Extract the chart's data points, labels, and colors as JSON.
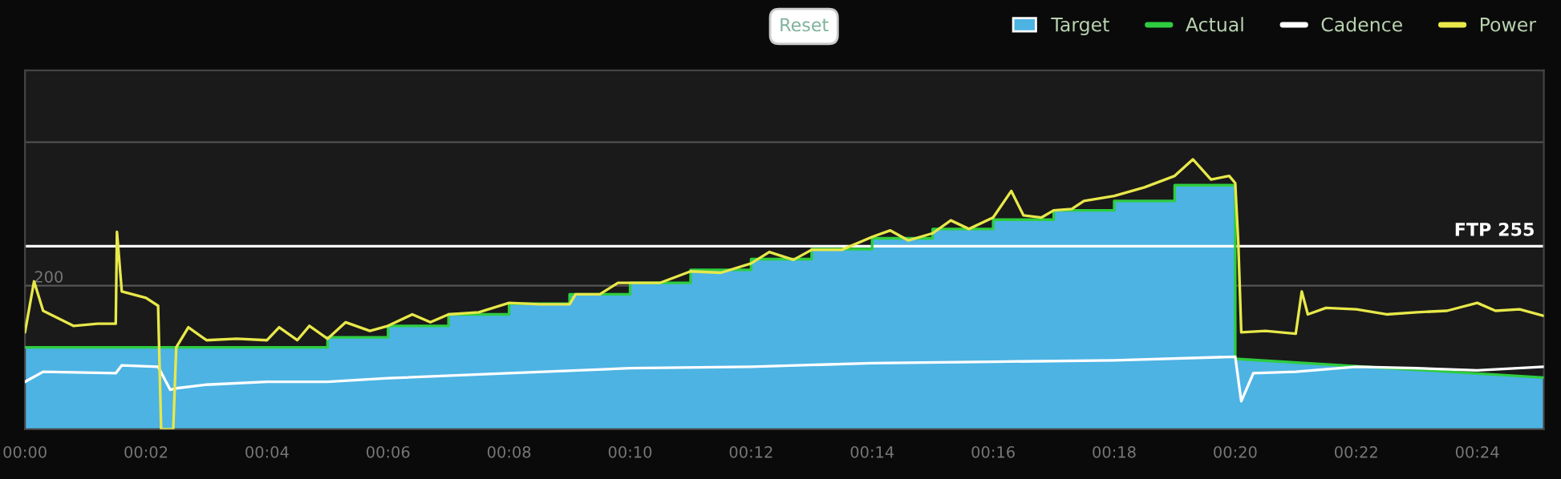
{
  "chart_data": {
    "type": "line",
    "xlim": [
      0,
      25.1
    ],
    "xticks": [
      {
        "value": 0,
        "label": "00:00"
      },
      {
        "value": 2,
        "label": "00:02"
      },
      {
        "value": 4,
        "label": "00:04"
      },
      {
        "value": 6,
        "label": "00:06"
      },
      {
        "value": 8,
        "label": "00:08"
      },
      {
        "value": 10,
        "label": "00:10"
      },
      {
        "value": 12,
        "label": "00:12"
      },
      {
        "value": 14,
        "label": "00:14"
      },
      {
        "value": 16,
        "label": "00:16"
      },
      {
        "value": 18,
        "label": "00:18"
      },
      {
        "value": 20,
        "label": "00:20"
      },
      {
        "value": 22,
        "label": "00:22"
      },
      {
        "value": 24,
        "label": "00:24"
      }
    ],
    "ylim": [
      0,
      500
    ],
    "yticks": [
      {
        "value": 200,
        "label": "200"
      },
      {
        "value": 400,
        "label": null
      }
    ],
    "grid": "y",
    "legend": "top right",
    "ref_lines": [
      {
        "axis": "y",
        "value": 255,
        "label": "FTP 255",
        "color": "#ffffff",
        "line_style": "solid"
      }
    ],
    "annotations": [
      "Reset"
    ],
    "series": [
      {
        "name": "Target",
        "type": "area",
        "color": "#4db3e3",
        "x": [
          0,
          5,
          5,
          6,
          6,
          7,
          7,
          8,
          8,
          9,
          9,
          10,
          10,
          11,
          11,
          12,
          12,
          13,
          13,
          14,
          14,
          15,
          15,
          16,
          16,
          17,
          17,
          18,
          18,
          19,
          19,
          20,
          20,
          25.1
        ],
        "values": [
          114,
          114,
          128,
          128,
          144,
          144,
          160,
          160,
          175,
          175,
          188,
          188,
          204,
          204,
          222,
          222,
          237,
          237,
          251,
          251,
          266,
          266,
          279,
          279,
          292,
          292,
          305,
          305,
          318,
          318,
          340,
          340,
          98,
          72
        ]
      },
      {
        "name": "Actual",
        "type": "line",
        "color": "#2ecc40",
        "x": [
          0,
          5,
          5,
          6,
          6,
          7,
          7,
          8,
          8,
          9,
          9,
          10,
          10,
          11,
          11,
          12,
          12,
          13,
          13,
          14,
          14,
          15,
          15,
          16,
          16,
          17,
          17,
          18,
          18,
          19,
          19,
          20,
          20,
          25.1
        ],
        "values": [
          114,
          114,
          128,
          128,
          144,
          144,
          160,
          160,
          175,
          175,
          188,
          188,
          204,
          204,
          222,
          222,
          237,
          237,
          251,
          251,
          266,
          266,
          279,
          279,
          292,
          292,
          305,
          305,
          318,
          318,
          340,
          340,
          98,
          72
        ]
      },
      {
        "name": "Cadence",
        "color": "#ffffff",
        "x": [
          0,
          0.3,
          1.5,
          1.6,
          2.2,
          2.4,
          2.5,
          3,
          4,
          5,
          6,
          8,
          10,
          12,
          14,
          16,
          18,
          20,
          20.1,
          20.3,
          21,
          22,
          23,
          24,
          25.1
        ],
        "values": [
          66,
          80,
          78,
          89,
          87,
          55,
          57,
          62,
          66,
          66,
          71,
          78,
          85,
          87,
          92,
          94,
          96,
          101,
          39,
          78,
          80,
          87,
          85,
          82,
          87
        ]
      },
      {
        "name": "Power",
        "color": "#e8e84a",
        "x": [
          0,
          0.15,
          0.3,
          0.8,
          1.2,
          1.5,
          1.52,
          1.6,
          2.0,
          2.2,
          2.25,
          2.45,
          2.5,
          2.7,
          3.0,
          3.5,
          4.0,
          4.2,
          4.5,
          4.7,
          5.0,
          5.3,
          5.7,
          6.0,
          6.4,
          6.7,
          7.0,
          7.5,
          8.0,
          8.5,
          9.0,
          9.1,
          9.5,
          9.8,
          10.0,
          10.5,
          11.0,
          11.5,
          12.0,
          12.3,
          12.7,
          13.0,
          13.5,
          14.0,
          14.3,
          14.6,
          15.0,
          15.3,
          15.6,
          16.0,
          16.3,
          16.5,
          16.8,
          17.0,
          17.3,
          17.5,
          18.0,
          18.5,
          19.0,
          19.3,
          19.6,
          19.9,
          20.0,
          20.05,
          20.1,
          20.5,
          21.0,
          21.1,
          21.2,
          21.5,
          22.0,
          22.5,
          23.0,
          23.5,
          24.0,
          24.3,
          24.7,
          25.1
        ],
        "values": [
          135,
          206,
          165,
          144,
          147,
          147,
          275,
          192,
          183,
          172,
          0,
          0,
          114,
          142,
          124,
          126,
          124,
          142,
          124,
          144,
          126,
          149,
          137,
          144,
          160,
          149,
          160,
          163,
          176,
          174,
          174,
          188,
          188,
          204,
          204,
          204,
          220,
          218,
          231,
          247,
          236,
          250,
          250,
          268,
          277,
          263,
          273,
          291,
          279,
          295,
          332,
          298,
          295,
          305,
          307,
          318,
          325,
          337,
          353,
          376,
          348,
          353,
          343,
          261,
          135,
          137,
          133,
          192,
          160,
          169,
          167,
          160,
          163,
          165,
          176,
          165,
          167,
          158
        ]
      }
    ]
  }
}
